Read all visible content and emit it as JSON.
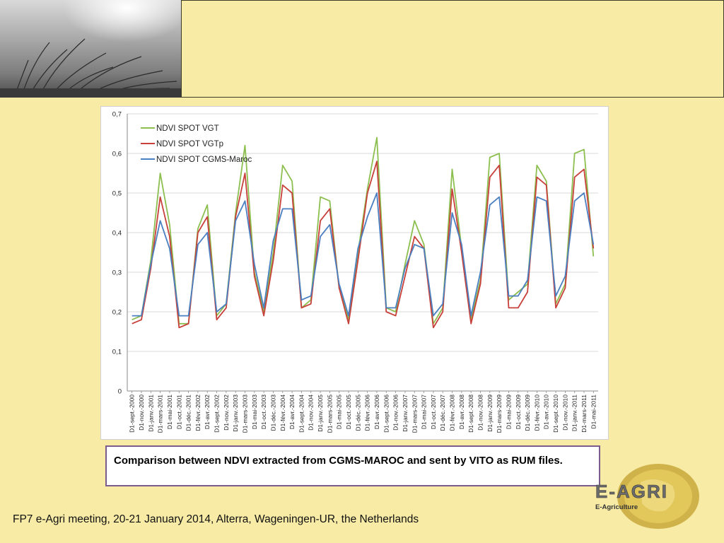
{
  "caption": "Comparison between NDVI extracted from CGMS-MAROC and sent by VITO as RUM files.",
  "footer": "FP7 e-Agri meeting, 20-21 January 2014, Alterra, Wageningen-UR, the Netherlands",
  "logo": {
    "title": "E-AGRI",
    "subtitle": "E-Agriculture"
  },
  "colors": {
    "background": "#f7eba5",
    "vgt": "#8cbf4f",
    "vgtp": "#c8403a",
    "cgms": "#4a7fc1",
    "caption_border": "#7a5c8e"
  },
  "chart_data": {
    "type": "line",
    "title": "",
    "xlabel": "",
    "ylabel": "",
    "ylim": [
      0,
      0.7
    ],
    "yticks": [
      "0",
      "0,1",
      "0,2",
      "0,3",
      "0,4",
      "0,5",
      "0,6",
      "0,7"
    ],
    "grid": true,
    "legend": "top-left",
    "x": [
      "D1-sept.-2000",
      "D1-nov.-2000",
      "D1-janv.-2001",
      "D1-mars-2001",
      "D1-mai-2001",
      "D1-oct.-2001",
      "D1-déc.-2001",
      "D1-févr.-2002",
      "D1-avr.-2002",
      "D1-sept.-2002",
      "D1-nov.-2002",
      "D1-janv.-2003",
      "D1-mars-2003",
      "D1-mai-2003",
      "D1-oct.-2003",
      "D1-déc.-2003",
      "D1-févr.-2004",
      "D1-avr.-2004",
      "D1-sept.-2004",
      "D1-nov.-2004",
      "D1-janv.-2005",
      "D1-mars-2005",
      "D1-mai-2005",
      "D1-oct.-2005",
      "D1-déc.-2005",
      "D1-févr.-2006",
      "D1-avr.-2006",
      "D1-sept.-2006",
      "D1-nov.-2006",
      "D1-janv.-2007",
      "D1-mars-2007",
      "D1-mai-2007",
      "D1-oct.-2007",
      "D1-déc.-2007",
      "D1-févr.-2008",
      "D1-avr.-2008",
      "D1-sept.-2008",
      "D1-nov.-2008",
      "D1-janv.-2009",
      "D1-mars-2009",
      "D1-mai-2009",
      "D1-oct.-2009",
      "D1-déc.-2009",
      "D1-févr.-2010",
      "D1-avr.-2010",
      "D1-sept.-2010",
      "D1-nov.-2010",
      "D1-janv.-2011",
      "D1-mars-2011",
      "D1-mai-2011"
    ],
    "series": [
      {
        "name": "NDVI SPOT VGT",
        "color": "#8cbf4f",
        "values": [
          0.18,
          0.19,
          0.33,
          0.55,
          0.42,
          0.17,
          0.17,
          0.41,
          0.47,
          0.19,
          0.22,
          0.45,
          0.62,
          0.3,
          0.2,
          0.35,
          0.57,
          0.53,
          0.21,
          0.23,
          0.49,
          0.48,
          0.26,
          0.18,
          0.35,
          0.51,
          0.64,
          0.21,
          0.2,
          0.32,
          0.43,
          0.37,
          0.17,
          0.21,
          0.56,
          0.36,
          0.18,
          0.28,
          0.59,
          0.6,
          0.23,
          0.25,
          0.27,
          0.57,
          0.53,
          0.22,
          0.27,
          0.6,
          0.61,
          0.34
        ]
      },
      {
        "name": "NDVI SPOT VGTp",
        "color": "#c8403a",
        "values": [
          0.17,
          0.18,
          0.31,
          0.49,
          0.39,
          0.16,
          0.17,
          0.4,
          0.44,
          0.18,
          0.21,
          0.44,
          0.55,
          0.29,
          0.19,
          0.33,
          0.52,
          0.5,
          0.21,
          0.22,
          0.43,
          0.46,
          0.26,
          0.17,
          0.33,
          0.5,
          0.58,
          0.2,
          0.19,
          0.29,
          0.39,
          0.36,
          0.16,
          0.2,
          0.51,
          0.35,
          0.17,
          0.27,
          0.54,
          0.57,
          0.21,
          0.21,
          0.25,
          0.54,
          0.52,
          0.21,
          0.26,
          0.54,
          0.56,
          0.36
        ]
      },
      {
        "name": "NDVI SPOT CGMS-Maroc",
        "color": "#4a7fc1",
        "values": [
          0.19,
          0.19,
          0.32,
          0.43,
          0.36,
          0.19,
          0.19,
          0.37,
          0.4,
          0.2,
          0.22,
          0.43,
          0.48,
          0.32,
          0.21,
          0.38,
          0.46,
          0.46,
          0.23,
          0.24,
          0.39,
          0.42,
          0.27,
          0.19,
          0.36,
          0.44,
          0.5,
          0.21,
          0.21,
          0.31,
          0.37,
          0.36,
          0.19,
          0.22,
          0.45,
          0.37,
          0.19,
          0.3,
          0.47,
          0.49,
          0.24,
          0.24,
          0.28,
          0.49,
          0.48,
          0.24,
          0.29,
          0.48,
          0.5,
          0.37
        ]
      }
    ]
  }
}
